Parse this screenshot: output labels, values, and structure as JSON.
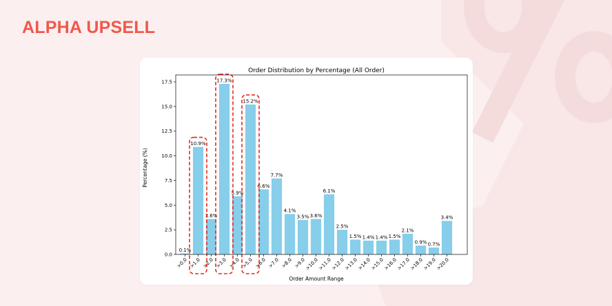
{
  "brand": {
    "name": "ALPHA UPSELL"
  },
  "colors": {
    "brand": "#f0584c",
    "background": "#fcefef",
    "bar": "#87ceeb",
    "highlight": "#e8281c"
  },
  "decoration": {
    "icon": "percent-icon"
  },
  "chart_data": {
    "type": "bar",
    "title": "Order Distribution by Percentage (All Order)",
    "xlabel": "Order Amount Range",
    "ylabel": "Percentage (%)",
    "ylim": [
      0,
      18.2
    ],
    "yticks": [
      "0.0",
      "2.5",
      "5.0",
      "7.5",
      "10.0",
      "12.5",
      "15.0",
      "17.5"
    ],
    "grid": false,
    "legend": "none",
    "categories": [
      ">0.0",
      ">1.0",
      ">2.0",
      ">3.0",
      ">4.0",
      ">5.0",
      ">6.0",
      ">7.0",
      ">8.0",
      ">9.0",
      ">10.0",
      ">11.0",
      ">12.0",
      ">13.0",
      ">14.0",
      ">15.0",
      ">16.0",
      ">17.0",
      ">18.0",
      ">19.0",
      ">20.0"
    ],
    "values": [
      0.1,
      10.9,
      3.6,
      17.3,
      5.9,
      15.2,
      6.6,
      7.7,
      4.1,
      3.5,
      3.6,
      6.1,
      2.5,
      1.5,
      1.4,
      1.4,
      1.5,
      2.1,
      0.9,
      0.7,
      3.4
    ],
    "labels": [
      "0.1%",
      "10.9%",
      "3.6%",
      "17.3%",
      "5.9%",
      "15.2%",
      "6.6%",
      "7.7%",
      "4.1%",
      "3.5%",
      "3.6%",
      "6.1%",
      "2.5%",
      "1.5%",
      "1.4%",
      "1.4%",
      "1.5%",
      "2.1%",
      "0.9%",
      "0.7%",
      "3.4%"
    ],
    "highlighted_categories": [
      ">1.0",
      ">3.0",
      ">5.0"
    ]
  }
}
